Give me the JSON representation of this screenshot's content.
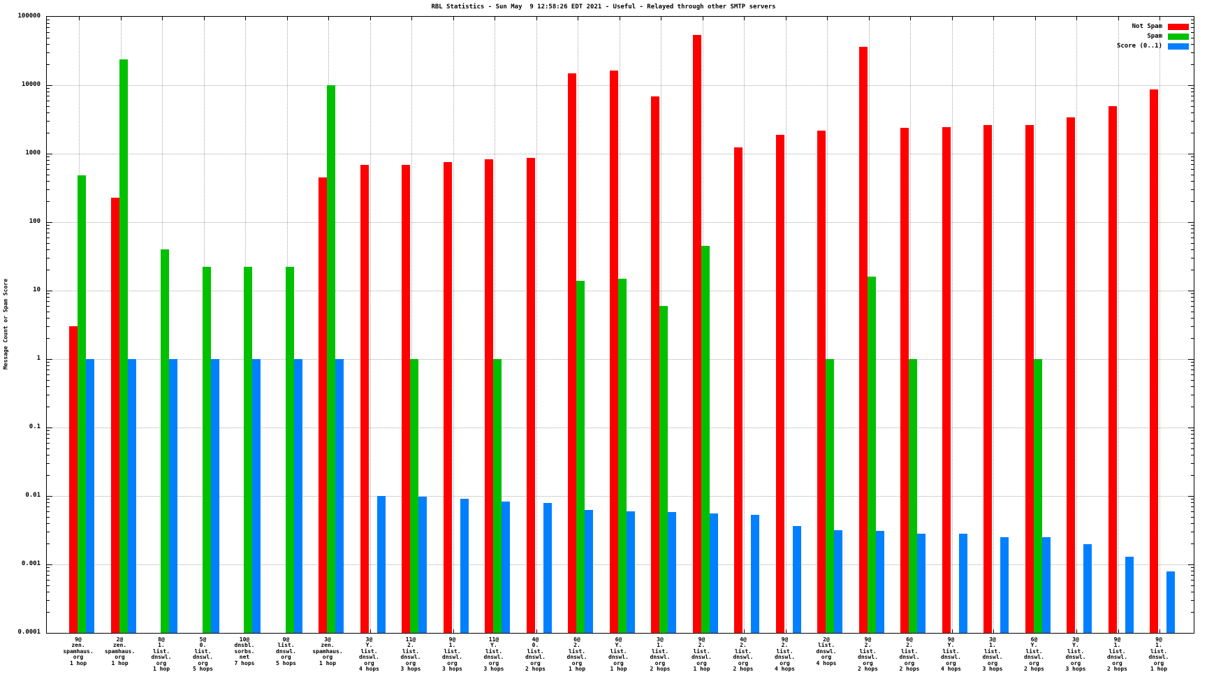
{
  "chart_data": {
    "type": "bar",
    "title": "RBL Statistics - Sun May  9 12:58:26 EDT 2021 - Useful - Relayed through other SMTP servers",
    "ylabel": "Message Count or Spam Score",
    "xlabel": "",
    "y_scale": "log",
    "ylim": [
      0.0001,
      100000
    ],
    "y_tick_labels": [
      "100000",
      "10000",
      "1000",
      "100",
      "10",
      "1",
      "0.1",
      "0.01",
      "0.001",
      "0.0001"
    ],
    "grid": true,
    "legend_position": "top-right-inside",
    "colors": {
      "not_spam": "#ff0000",
      "spam": "#00c000",
      "score": "#0080ff",
      "grid": "#a8a8a8",
      "axis": "#000000"
    },
    "series": [
      {
        "key": "not_spam",
        "name": "Not Spam",
        "color": "#ff0000"
      },
      {
        "key": "spam",
        "name": "Spam",
        "color": "#00c000"
      },
      {
        "key": "score",
        "name": "Score (0..1)",
        "color": "#0080ff"
      }
    ],
    "groups": [
      {
        "label_lines": [
          "9@",
          "zen.",
          "spamhaus.",
          "org",
          "1 hop"
        ],
        "not_spam": 3,
        "spam": 480,
        "score": 1
      },
      {
        "label_lines": [
          "2@",
          "zen.",
          "spamhaus.",
          "org",
          "1 hop"
        ],
        "not_spam": 230,
        "spam": 24000,
        "score": 1
      },
      {
        "label_lines": [
          "8@",
          "1.",
          "list.",
          "dnswl.",
          "org",
          "1 hop"
        ],
        "not_spam": 0,
        "spam": 40,
        "score": 1
      },
      {
        "label_lines": [
          "5@",
          "0.",
          "list.",
          "dnswl.",
          "org",
          "5 hops"
        ],
        "not_spam": 0,
        "spam": 22,
        "score": 1
      },
      {
        "label_lines": [
          "10@",
          "dnsbl.",
          "sorbs.",
          "net",
          "7 hops"
        ],
        "not_spam": 0,
        "spam": 22,
        "score": 1
      },
      {
        "label_lines": [
          "0@",
          "list.",
          "dnswl.",
          "org",
          "5 hops"
        ],
        "not_spam": 0,
        "spam": 22,
        "score": 1
      },
      {
        "label_lines": [
          "3@",
          "zen.",
          "spamhaus.",
          "org",
          "1 hop"
        ],
        "not_spam": 450,
        "spam": 10000,
        "score": 1
      },
      {
        "label_lines": [
          "3@",
          "Y.",
          "list.",
          "dnswl.",
          "org",
          "4 hops"
        ],
        "not_spam": 690,
        "spam": 0,
        "score": 0.01
      },
      {
        "label_lines": [
          "11@",
          "2.",
          "list.",
          "dnswl.",
          "org",
          "3 hops"
        ],
        "not_spam": 690,
        "spam": 1,
        "score": 0.0098
      },
      {
        "label_lines": [
          "9@",
          "1.",
          "list.",
          "dnswl.",
          "org",
          "3 hops"
        ],
        "not_spam": 750,
        "spam": 0,
        "score": 0.009
      },
      {
        "label_lines": [
          "11@",
          "Y.",
          "list.",
          "dnswl.",
          "org",
          "3 hops"
        ],
        "not_spam": 830,
        "spam": 1,
        "score": 0.0082
      },
      {
        "label_lines": [
          "4@",
          "0.",
          "list.",
          "dnswl.",
          "org",
          "2 hops"
        ],
        "not_spam": 870,
        "spam": 0,
        "score": 0.008
      },
      {
        "label_lines": [
          "6@",
          "2.",
          "list.",
          "dnswl.",
          "org",
          "1 hop"
        ],
        "not_spam": 15000,
        "spam": 14,
        "score": 0.0062
      },
      {
        "label_lines": [
          "6@",
          "Y.",
          "list.",
          "dnswl.",
          "org",
          "1 hop"
        ],
        "not_spam": 16500,
        "spam": 15,
        "score": 0.006
      },
      {
        "label_lines": [
          "3@",
          "1.",
          "list.",
          "dnswl.",
          "org",
          "2 hops"
        ],
        "not_spam": 6900,
        "spam": 6,
        "score": 0.0058
      },
      {
        "label_lines": [
          "9@",
          "2.",
          "list.",
          "dnswl.",
          "org",
          "1 hop"
        ],
        "not_spam": 54000,
        "spam": 45,
        "score": 0.0055
      },
      {
        "label_lines": [
          "4@",
          "2.",
          "list.",
          "dnswl.",
          "org",
          "2 hops"
        ],
        "not_spam": 1250,
        "spam": 0,
        "score": 0.0053
      },
      {
        "label_lines": [
          "9@",
          "2.",
          "list.",
          "dnswl.",
          "org",
          "4 hops"
        ],
        "not_spam": 1900,
        "spam": 0,
        "score": 0.0036
      },
      {
        "label_lines": [
          "2@",
          "list.",
          "dnswl.",
          "org",
          "4 hops"
        ],
        "not_spam": 2150,
        "spam": 1,
        "score": 0.0032
      },
      {
        "label_lines": [
          "9@",
          "2.",
          "list.",
          "dnswl.",
          "org",
          "2 hops"
        ],
        "not_spam": 36000,
        "spam": 16,
        "score": 0.0031
      },
      {
        "label_lines": [
          "6@",
          "2.",
          "list.",
          "dnswl.",
          "org",
          "2 hops"
        ],
        "not_spam": 2400,
        "spam": 1,
        "score": 0.0028
      },
      {
        "label_lines": [
          "9@",
          "Y.",
          "list.",
          "dnswl.",
          "org",
          "4 hops"
        ],
        "not_spam": 2450,
        "spam": 0,
        "score": 0.0028
      },
      {
        "label_lines": [
          "3@",
          "1.",
          "list.",
          "dnswl.",
          "org",
          "3 hops"
        ],
        "not_spam": 2650,
        "spam": 0,
        "score": 0.0025
      },
      {
        "label_lines": [
          "6@",
          "Y.",
          "list.",
          "dnswl.",
          "org",
          "2 hops"
        ],
        "not_spam": 2650,
        "spam": 1,
        "score": 0.0025
      },
      {
        "label_lines": [
          "3@",
          "Y.",
          "list.",
          "dnswl.",
          "org",
          "3 hops"
        ],
        "not_spam": 3360,
        "spam": 0,
        "score": 0.002
      },
      {
        "label_lines": [
          "9@",
          "1.",
          "list.",
          "dnswl.",
          "org",
          "2 hops"
        ],
        "not_spam": 5000,
        "spam": 0,
        "score": 0.0013
      },
      {
        "label_lines": [
          "9@",
          "1.",
          "list.",
          "dnswl.",
          "org",
          "1 hop"
        ],
        "not_spam": 8600,
        "spam": 0,
        "score": 0.0008
      }
    ]
  }
}
